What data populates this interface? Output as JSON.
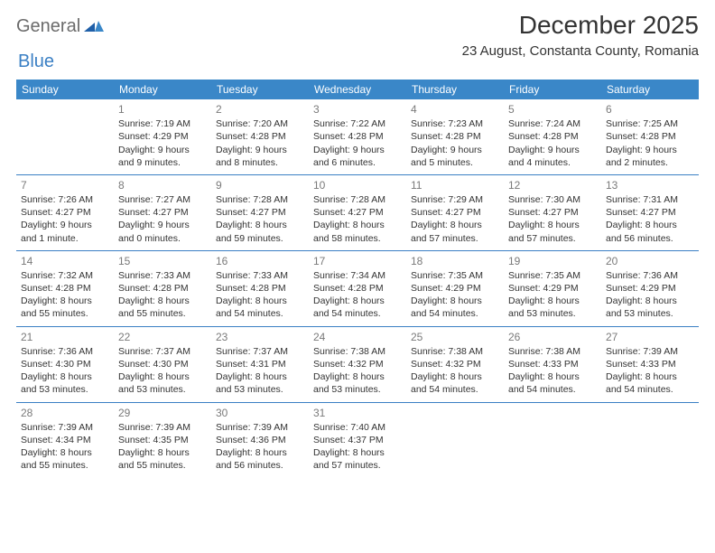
{
  "logo": {
    "general": "General",
    "blue": "Blue"
  },
  "title": "December 2025",
  "location": "23 August, Constanta County, Romania",
  "colors": {
    "header_bg": "#3a87c8",
    "header_fg": "#ffffff",
    "accent": "#3a7fc4",
    "text": "#333333",
    "daynum": "#7a7a7a",
    "logo_gray": "#6b6b6b"
  },
  "weekdays": [
    "Sunday",
    "Monday",
    "Tuesday",
    "Wednesday",
    "Thursday",
    "Friday",
    "Saturday"
  ],
  "weeks": [
    [
      null,
      {
        "n": "1",
        "sr": "Sunrise: 7:19 AM",
        "ss": "Sunset: 4:29 PM",
        "dl": "Daylight: 9 hours and 9 minutes."
      },
      {
        "n": "2",
        "sr": "Sunrise: 7:20 AM",
        "ss": "Sunset: 4:28 PM",
        "dl": "Daylight: 9 hours and 8 minutes."
      },
      {
        "n": "3",
        "sr": "Sunrise: 7:22 AM",
        "ss": "Sunset: 4:28 PM",
        "dl": "Daylight: 9 hours and 6 minutes."
      },
      {
        "n": "4",
        "sr": "Sunrise: 7:23 AM",
        "ss": "Sunset: 4:28 PM",
        "dl": "Daylight: 9 hours and 5 minutes."
      },
      {
        "n": "5",
        "sr": "Sunrise: 7:24 AM",
        "ss": "Sunset: 4:28 PM",
        "dl": "Daylight: 9 hours and 4 minutes."
      },
      {
        "n": "6",
        "sr": "Sunrise: 7:25 AM",
        "ss": "Sunset: 4:28 PM",
        "dl": "Daylight: 9 hours and 2 minutes."
      }
    ],
    [
      {
        "n": "7",
        "sr": "Sunrise: 7:26 AM",
        "ss": "Sunset: 4:27 PM",
        "dl": "Daylight: 9 hours and 1 minute."
      },
      {
        "n": "8",
        "sr": "Sunrise: 7:27 AM",
        "ss": "Sunset: 4:27 PM",
        "dl": "Daylight: 9 hours and 0 minutes."
      },
      {
        "n": "9",
        "sr": "Sunrise: 7:28 AM",
        "ss": "Sunset: 4:27 PM",
        "dl": "Daylight: 8 hours and 59 minutes."
      },
      {
        "n": "10",
        "sr": "Sunrise: 7:28 AM",
        "ss": "Sunset: 4:27 PM",
        "dl": "Daylight: 8 hours and 58 minutes."
      },
      {
        "n": "11",
        "sr": "Sunrise: 7:29 AM",
        "ss": "Sunset: 4:27 PM",
        "dl": "Daylight: 8 hours and 57 minutes."
      },
      {
        "n": "12",
        "sr": "Sunrise: 7:30 AM",
        "ss": "Sunset: 4:27 PM",
        "dl": "Daylight: 8 hours and 57 minutes."
      },
      {
        "n": "13",
        "sr": "Sunrise: 7:31 AM",
        "ss": "Sunset: 4:27 PM",
        "dl": "Daylight: 8 hours and 56 minutes."
      }
    ],
    [
      {
        "n": "14",
        "sr": "Sunrise: 7:32 AM",
        "ss": "Sunset: 4:28 PM",
        "dl": "Daylight: 8 hours and 55 minutes."
      },
      {
        "n": "15",
        "sr": "Sunrise: 7:33 AM",
        "ss": "Sunset: 4:28 PM",
        "dl": "Daylight: 8 hours and 55 minutes."
      },
      {
        "n": "16",
        "sr": "Sunrise: 7:33 AM",
        "ss": "Sunset: 4:28 PM",
        "dl": "Daylight: 8 hours and 54 minutes."
      },
      {
        "n": "17",
        "sr": "Sunrise: 7:34 AM",
        "ss": "Sunset: 4:28 PM",
        "dl": "Daylight: 8 hours and 54 minutes."
      },
      {
        "n": "18",
        "sr": "Sunrise: 7:35 AM",
        "ss": "Sunset: 4:29 PM",
        "dl": "Daylight: 8 hours and 54 minutes."
      },
      {
        "n": "19",
        "sr": "Sunrise: 7:35 AM",
        "ss": "Sunset: 4:29 PM",
        "dl": "Daylight: 8 hours and 53 minutes."
      },
      {
        "n": "20",
        "sr": "Sunrise: 7:36 AM",
        "ss": "Sunset: 4:29 PM",
        "dl": "Daylight: 8 hours and 53 minutes."
      }
    ],
    [
      {
        "n": "21",
        "sr": "Sunrise: 7:36 AM",
        "ss": "Sunset: 4:30 PM",
        "dl": "Daylight: 8 hours and 53 minutes."
      },
      {
        "n": "22",
        "sr": "Sunrise: 7:37 AM",
        "ss": "Sunset: 4:30 PM",
        "dl": "Daylight: 8 hours and 53 minutes."
      },
      {
        "n": "23",
        "sr": "Sunrise: 7:37 AM",
        "ss": "Sunset: 4:31 PM",
        "dl": "Daylight: 8 hours and 53 minutes."
      },
      {
        "n": "24",
        "sr": "Sunrise: 7:38 AM",
        "ss": "Sunset: 4:32 PM",
        "dl": "Daylight: 8 hours and 53 minutes."
      },
      {
        "n": "25",
        "sr": "Sunrise: 7:38 AM",
        "ss": "Sunset: 4:32 PM",
        "dl": "Daylight: 8 hours and 54 minutes."
      },
      {
        "n": "26",
        "sr": "Sunrise: 7:38 AM",
        "ss": "Sunset: 4:33 PM",
        "dl": "Daylight: 8 hours and 54 minutes."
      },
      {
        "n": "27",
        "sr": "Sunrise: 7:39 AM",
        "ss": "Sunset: 4:33 PM",
        "dl": "Daylight: 8 hours and 54 minutes."
      }
    ],
    [
      {
        "n": "28",
        "sr": "Sunrise: 7:39 AM",
        "ss": "Sunset: 4:34 PM",
        "dl": "Daylight: 8 hours and 55 minutes."
      },
      {
        "n": "29",
        "sr": "Sunrise: 7:39 AM",
        "ss": "Sunset: 4:35 PM",
        "dl": "Daylight: 8 hours and 55 minutes."
      },
      {
        "n": "30",
        "sr": "Sunrise: 7:39 AM",
        "ss": "Sunset: 4:36 PM",
        "dl": "Daylight: 8 hours and 56 minutes."
      },
      {
        "n": "31",
        "sr": "Sunrise: 7:40 AM",
        "ss": "Sunset: 4:37 PM",
        "dl": "Daylight: 8 hours and 57 minutes."
      },
      null,
      null,
      null
    ]
  ]
}
